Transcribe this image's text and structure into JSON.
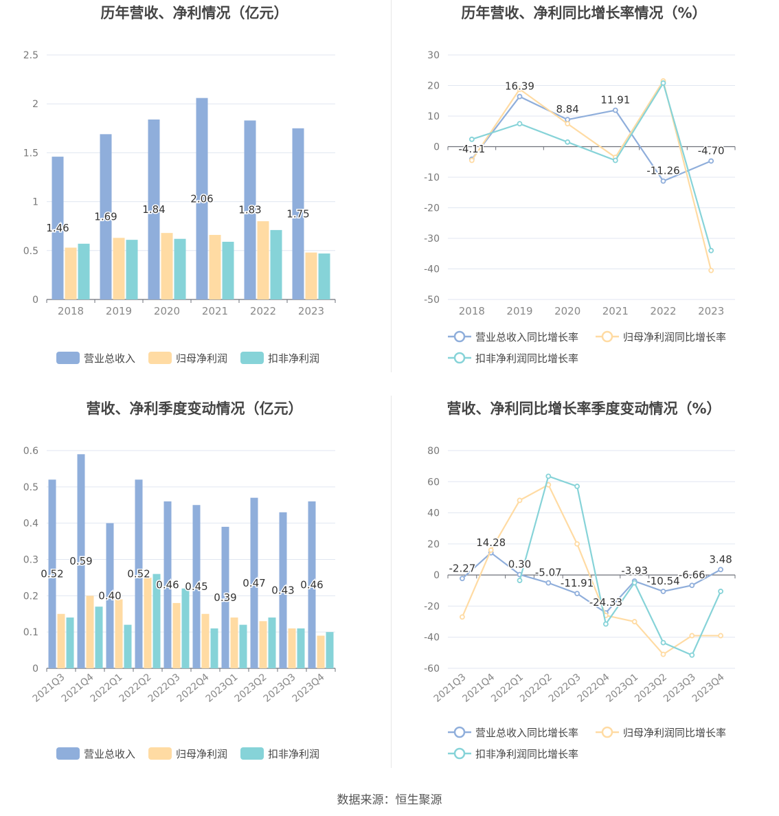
{
  "colors": {
    "revenue": "#8FAEDB",
    "net_profit": "#FFDBA3",
    "deducted_profit": "#86D3D8",
    "axis": "#666666",
    "grid": "#E0E6F1",
    "title": "#444444"
  },
  "footer": "数据来源：恒生聚源",
  "chart_data": [
    {
      "type": "bar",
      "title": "历年营收、净利情况（亿元）",
      "categories": [
        "2018",
        "2019",
        "2020",
        "2021",
        "2022",
        "2023"
      ],
      "ylim": [
        0,
        2.5
      ],
      "yticks": [
        "0",
        "0.5",
        "1",
        "1.5",
        "2",
        "2.5"
      ],
      "series": [
        {
          "name": "营业总收入",
          "values": [
            1.46,
            1.69,
            1.84,
            2.06,
            1.83,
            1.75
          ],
          "labels": [
            "1.46",
            "1.69",
            "1.84",
            "2.06",
            "1.83",
            "1.75"
          ]
        },
        {
          "name": "归母净利润",
          "values": [
            0.53,
            0.63,
            0.68,
            0.66,
            0.8,
            0.48
          ]
        },
        {
          "name": "扣非净利润",
          "values": [
            0.57,
            0.61,
            0.62,
            0.59,
            0.71,
            0.47
          ]
        }
      ],
      "legend": "bottom"
    },
    {
      "type": "line",
      "title": "历年营收、净利同比增长率情况（%）",
      "categories": [
        "2018",
        "2019",
        "2020",
        "2021",
        "2022",
        "2023"
      ],
      "ylim": [
        -50,
        30
      ],
      "yticks": [
        "-50",
        "-40",
        "-30",
        "-20",
        "-10",
        "0",
        "10",
        "20",
        "30"
      ],
      "series": [
        {
          "name": "营业总收入同比增长率",
          "values": [
            -4.11,
            16.39,
            8.84,
            11.91,
            -11.26,
            -4.7
          ],
          "labels": [
            "-4.11",
            "16.39",
            "8.84",
            "11.91",
            "-11.26",
            "-4.70"
          ]
        },
        {
          "name": "归母净利润同比增长率",
          "values": [
            -4.5,
            18.8,
            7.5,
            -3.5,
            21.5,
            -40.5
          ]
        },
        {
          "name": "扣非净利润同比增长率",
          "values": [
            2.4,
            7.5,
            1.5,
            -4.5,
            20.8,
            -34.0
          ]
        }
      ],
      "legend": "bottom"
    },
    {
      "type": "bar",
      "title": "营收、净利季度变动情况（亿元）",
      "categories": [
        "2021Q3",
        "2021Q4",
        "2022Q1",
        "2022Q2",
        "2022Q3",
        "2022Q4",
        "2023Q1",
        "2023Q2",
        "2023Q3",
        "2023Q4"
      ],
      "ylim": [
        0,
        0.6
      ],
      "yticks": [
        "0",
        "0.1",
        "0.2",
        "0.3",
        "0.4",
        "0.5",
        "0.6"
      ],
      "series": [
        {
          "name": "营业总收入",
          "values": [
            0.52,
            0.59,
            0.4,
            0.52,
            0.46,
            0.45,
            0.39,
            0.47,
            0.43,
            0.46
          ],
          "labels": [
            "0.52",
            "0.59",
            "0.40",
            "0.52",
            "0.46",
            "0.45",
            "0.39",
            "0.47",
            "0.43",
            "0.46"
          ]
        },
        {
          "name": "归母净利润",
          "values": [
            0.15,
            0.2,
            0.19,
            0.25,
            0.18,
            0.15,
            0.14,
            0.13,
            0.11,
            0.09
          ]
        },
        {
          "name": "扣非净利润",
          "values": [
            0.14,
            0.17,
            0.12,
            0.26,
            0.22,
            0.11,
            0.12,
            0.14,
            0.11,
            0.1
          ]
        }
      ],
      "legend": "bottom"
    },
    {
      "type": "line",
      "title": "营收、净利同比增长率季度变动情况（%）",
      "categories": [
        "2021Q3",
        "2021Q4",
        "2022Q1",
        "2022Q2",
        "2022Q3",
        "2022Q4",
        "2023Q1",
        "2023Q2",
        "2023Q3",
        "2023Q4"
      ],
      "ylim": [
        -60,
        80
      ],
      "yticks": [
        "-60",
        "-40",
        "-20",
        "0",
        "20",
        "40",
        "60",
        "80"
      ],
      "series": [
        {
          "name": "营业总收入同比增长率",
          "values": [
            -2.27,
            14.28,
            0.3,
            -5.07,
            -11.91,
            -24.33,
            -3.93,
            -10.54,
            -6.66,
            3.48
          ],
          "labels": [
            "-2.27",
            "14.28",
            "0.30",
            "-5.07",
            "-11.91",
            "-24.33",
            "-3.93",
            "-10.54",
            "-6.66",
            "3.48"
          ]
        },
        {
          "name": "归母净利润同比增长率",
          "values": [
            -27,
            16,
            48,
            58,
            20,
            -26,
            -30,
            -51,
            -39,
            -39
          ]
        },
        {
          "name": "扣非净利润同比增长率",
          "values": [
            null,
            null,
            -3.5,
            63.5,
            57,
            -31.5,
            -5,
            -43.5,
            -51.5,
            -10.5
          ]
        }
      ],
      "legend": "bottom"
    }
  ]
}
